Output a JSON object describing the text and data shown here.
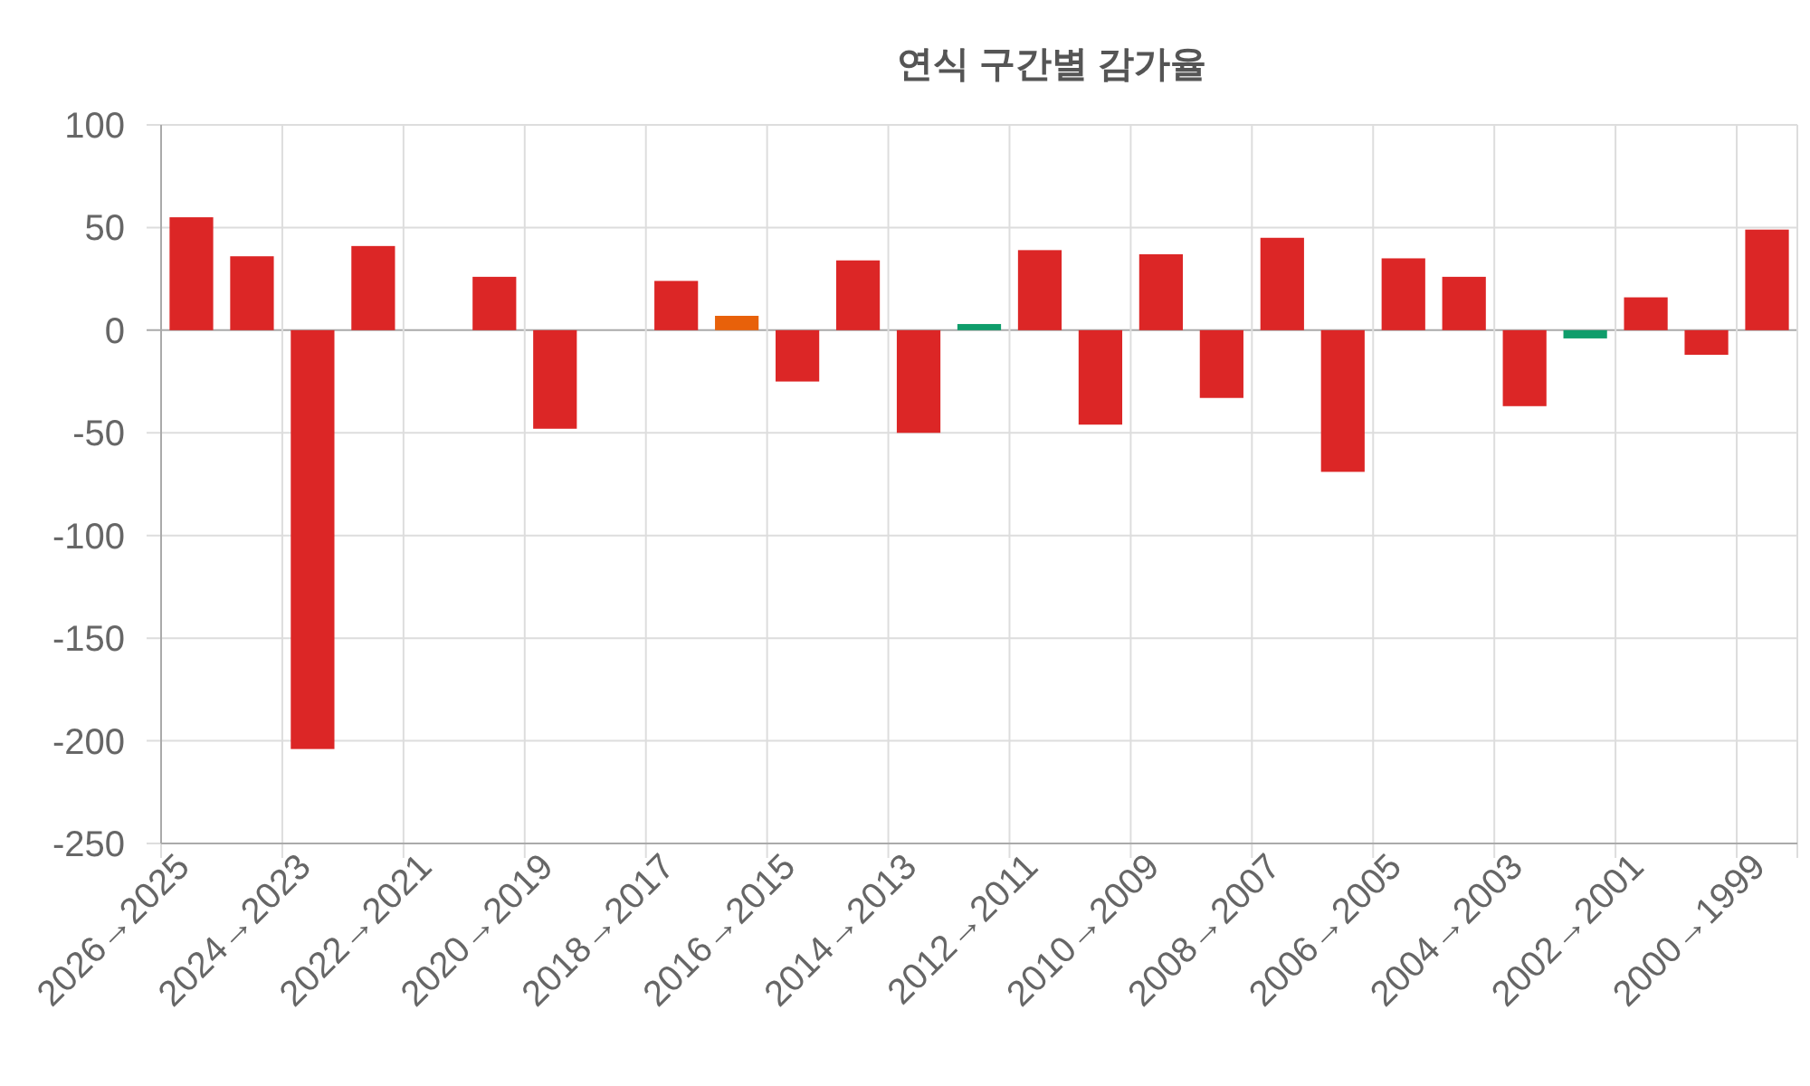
{
  "chart_data": {
    "type": "bar",
    "title": "연식 구간별 감가율",
    "categories": [
      "2026→2025",
      null,
      "2024→2023",
      null,
      "2022→2021",
      null,
      "2020→2019",
      null,
      "2018→2017",
      null,
      "2016→2015",
      null,
      "2014→2013",
      null,
      "2012→2011",
      null,
      "2010→2009",
      null,
      "2008→2007",
      null,
      "2006→2005",
      null,
      "2004→2003",
      null,
      "2002→2001",
      null,
      "2000→1999"
    ],
    "values": [
      55,
      36,
      -204,
      41,
      null,
      26,
      -48,
      null,
      24,
      7,
      -25,
      34,
      -50,
      3,
      39,
      -46,
      37,
      -33,
      45,
      -69,
      35,
      26,
      -37,
      -4,
      16,
      -12,
      49
    ],
    "colors": [
      "#dc2626",
      "#dc2626",
      "#dc2626",
      "#dc2626",
      null,
      "#dc2626",
      "#dc2626",
      null,
      "#dc2626",
      "#e8610a",
      "#dc2626",
      "#dc2626",
      "#dc2626",
      "#0f9d6b",
      "#dc2626",
      "#dc2626",
      "#dc2626",
      "#dc2626",
      "#dc2626",
      "#dc2626",
      "#dc2626",
      "#dc2626",
      "#dc2626",
      "#0f9d6b",
      "#dc2626",
      "#dc2626",
      "#dc2626"
    ],
    "ylim": [
      -250,
      100
    ],
    "yticks": [
      -250,
      -200,
      -150,
      -100,
      -50,
      0,
      50,
      100
    ],
    "grid": true
  }
}
